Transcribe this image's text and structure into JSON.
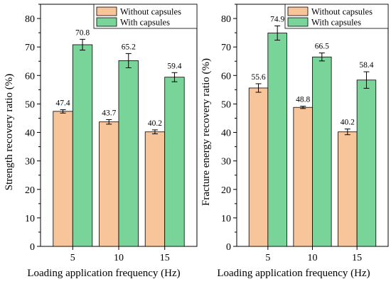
{
  "colors": {
    "without": "#f8c49a",
    "with": "#79d49a",
    "bar_stroke": "#000000"
  },
  "chart_data": [
    {
      "type": "bar",
      "xlabel": "Loading application frequency (Hz)",
      "ylabel": "Strength recovery ratio (%)",
      "ylim": [
        0,
        85
      ],
      "yticks": [
        0,
        10,
        20,
        30,
        40,
        50,
        60,
        70,
        80
      ],
      "categories": [
        "5",
        "10",
        "15"
      ],
      "legend_position": "top-right",
      "grid": false,
      "series": [
        {
          "name": "Without capsules",
          "color_key": "without",
          "values": [
            47.4,
            43.7,
            40.2
          ],
          "labels": [
            "47.4",
            "43.7",
            "40.2"
          ],
          "errors": [
            0.6,
            0.8,
            0.7
          ]
        },
        {
          "name": "With capsules",
          "color_key": "with",
          "values": [
            70.8,
            65.2,
            59.4
          ],
          "labels": [
            "70.8",
            "65.2",
            "59.4"
          ],
          "errors": [
            1.9,
            2.5,
            1.6
          ]
        }
      ]
    },
    {
      "type": "bar",
      "xlabel": "Loading application frequency (Hz)",
      "ylabel": "Fracture energy recovery ratio (%)",
      "ylim": [
        0,
        85
      ],
      "yticks": [
        0,
        10,
        20,
        30,
        40,
        50,
        60,
        70,
        80
      ],
      "categories": [
        "5",
        "10",
        "15"
      ],
      "legend_position": "top-right",
      "grid": false,
      "series": [
        {
          "name": "Without capsules",
          "color_key": "without",
          "values": [
            55.6,
            48.8,
            40.2
          ],
          "labels": [
            "55.6",
            "48.8",
            "40.2"
          ],
          "errors": [
            1.5,
            0.4,
            1.0
          ]
        },
        {
          "name": "With capsules",
          "color_key": "with",
          "values": [
            74.9,
            66.5,
            58.4
          ],
          "labels": [
            "74.9",
            "66.5",
            "58.4"
          ],
          "errors": [
            2.5,
            1.4,
            2.9
          ]
        }
      ]
    }
  ]
}
